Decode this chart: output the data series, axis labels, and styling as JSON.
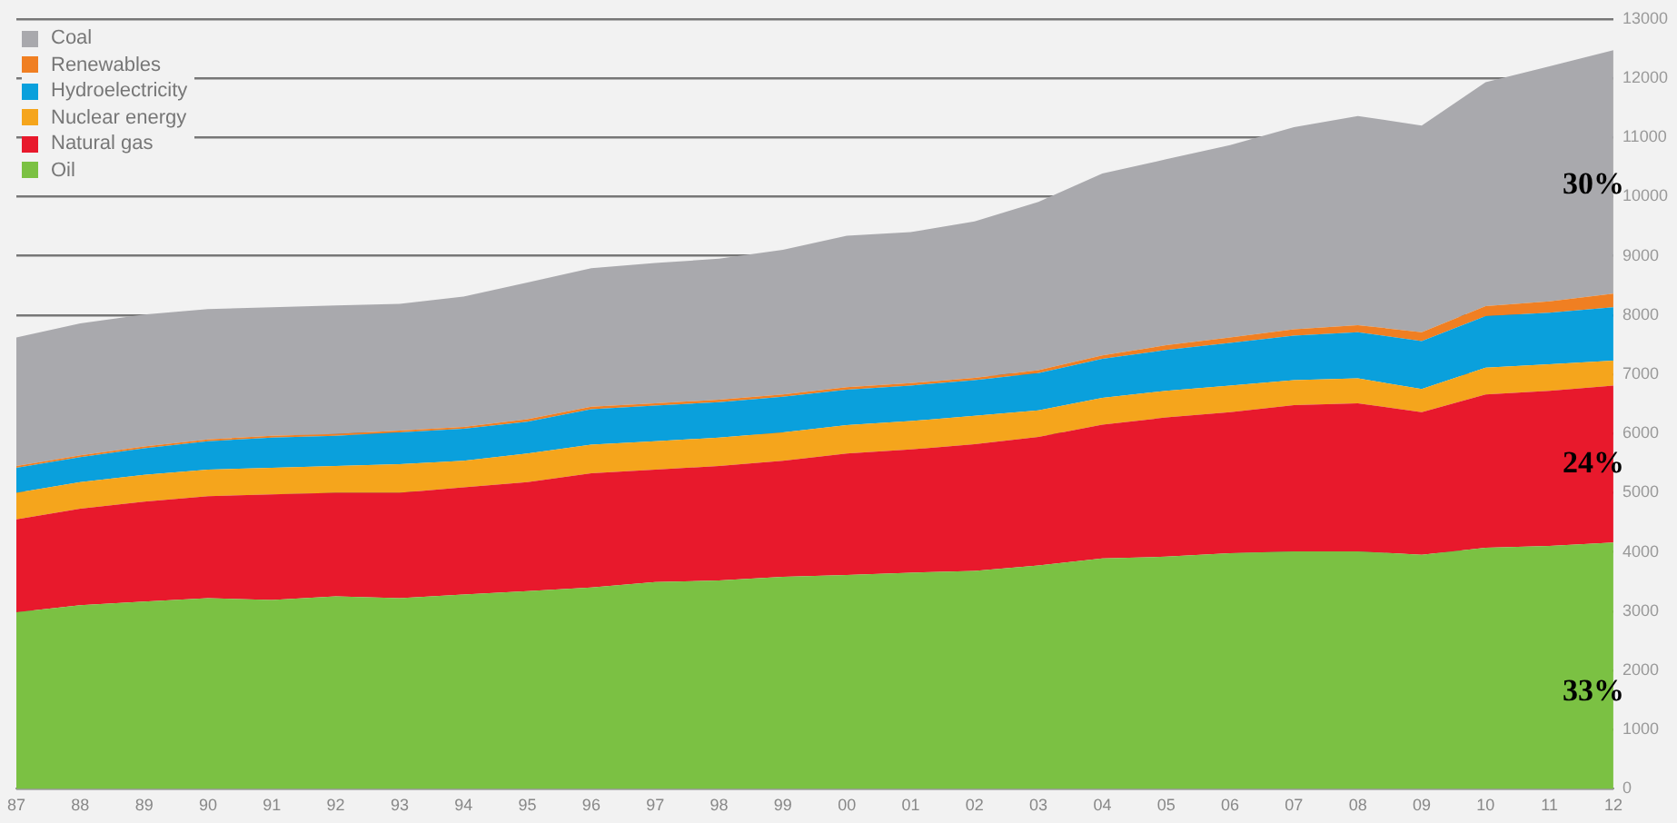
{
  "chart_data": {
    "type": "area",
    "stacked": true,
    "categories": [
      "87",
      "88",
      "89",
      "90",
      "91",
      "92",
      "93",
      "94",
      "95",
      "96",
      "97",
      "98",
      "99",
      "00",
      "01",
      "02",
      "03",
      "04",
      "05",
      "06",
      "07",
      "08",
      "09",
      "10",
      "11",
      "12"
    ],
    "series": [
      {
        "name": "Oil",
        "color": "#7bc143",
        "values": [
          2980,
          3100,
          3160,
          3220,
          3190,
          3250,
          3220,
          3280,
          3340,
          3400,
          3490,
          3520,
          3580,
          3610,
          3650,
          3680,
          3770,
          3890,
          3920,
          3980,
          4010,
          4010,
          3950,
          4070,
          4100,
          4160
        ]
      },
      {
        "name": "Natural gas",
        "color": "#e8192c",
        "values": [
          1570,
          1630,
          1690,
          1720,
          1780,
          1750,
          1780,
          1810,
          1840,
          1930,
          1900,
          1930,
          1960,
          2050,
          2080,
          2140,
          2170,
          2260,
          2350,
          2380,
          2470,
          2500,
          2410,
          2590,
          2620,
          2650
        ]
      },
      {
        "name": "Nuclear energy",
        "color": "#f5a51c",
        "values": [
          450,
          450,
          450,
          450,
          450,
          450,
          480,
          450,
          480,
          480,
          480,
          480,
          480,
          480,
          480,
          480,
          450,
          450,
          450,
          450,
          420,
          420,
          390,
          450,
          450,
          420
        ]
      },
      {
        "name": "Hydroelectricity",
        "color": "#0aa0dc",
        "values": [
          420,
          420,
          450,
          480,
          510,
          510,
          540,
          540,
          540,
          600,
          600,
          600,
          600,
          600,
          600,
          600,
          630,
          660,
          690,
          720,
          750,
          780,
          810,
          870,
          870,
          900
        ]
      },
      {
        "name": "Renewables",
        "color": "#f07f22",
        "values": [
          30,
          30,
          30,
          30,
          30,
          30,
          30,
          30,
          40,
          40,
          40,
          40,
          40,
          40,
          40,
          40,
          50,
          60,
          80,
          90,
          110,
          120,
          150,
          170,
          190,
          230
        ]
      },
      {
        "name": "Coal",
        "color": "#a9a9ad",
        "values": [
          2170,
          2230,
          2230,
          2200,
          2170,
          2170,
          2140,
          2200,
          2310,
          2340,
          2370,
          2380,
          2440,
          2560,
          2550,
          2640,
          2840,
          3070,
          3140,
          3250,
          3410,
          3530,
          3490,
          3780,
          3970,
          4110
        ]
      }
    ],
    "ylim": [
      0,
      13000
    ],
    "yticks": [
      0,
      1000,
      2000,
      3000,
      4000,
      5000,
      6000,
      7000,
      8000,
      9000,
      10000,
      11000,
      12000,
      13000
    ],
    "grid": "y",
    "legend": "top left",
    "annotations": [
      {
        "text": "30%",
        "x": "12",
        "y": 10180
      },
      {
        "text": "24%",
        "x": "12",
        "y": 5480
      },
      {
        "text": "33%",
        "x": "12",
        "y": 1630
      }
    ]
  }
}
